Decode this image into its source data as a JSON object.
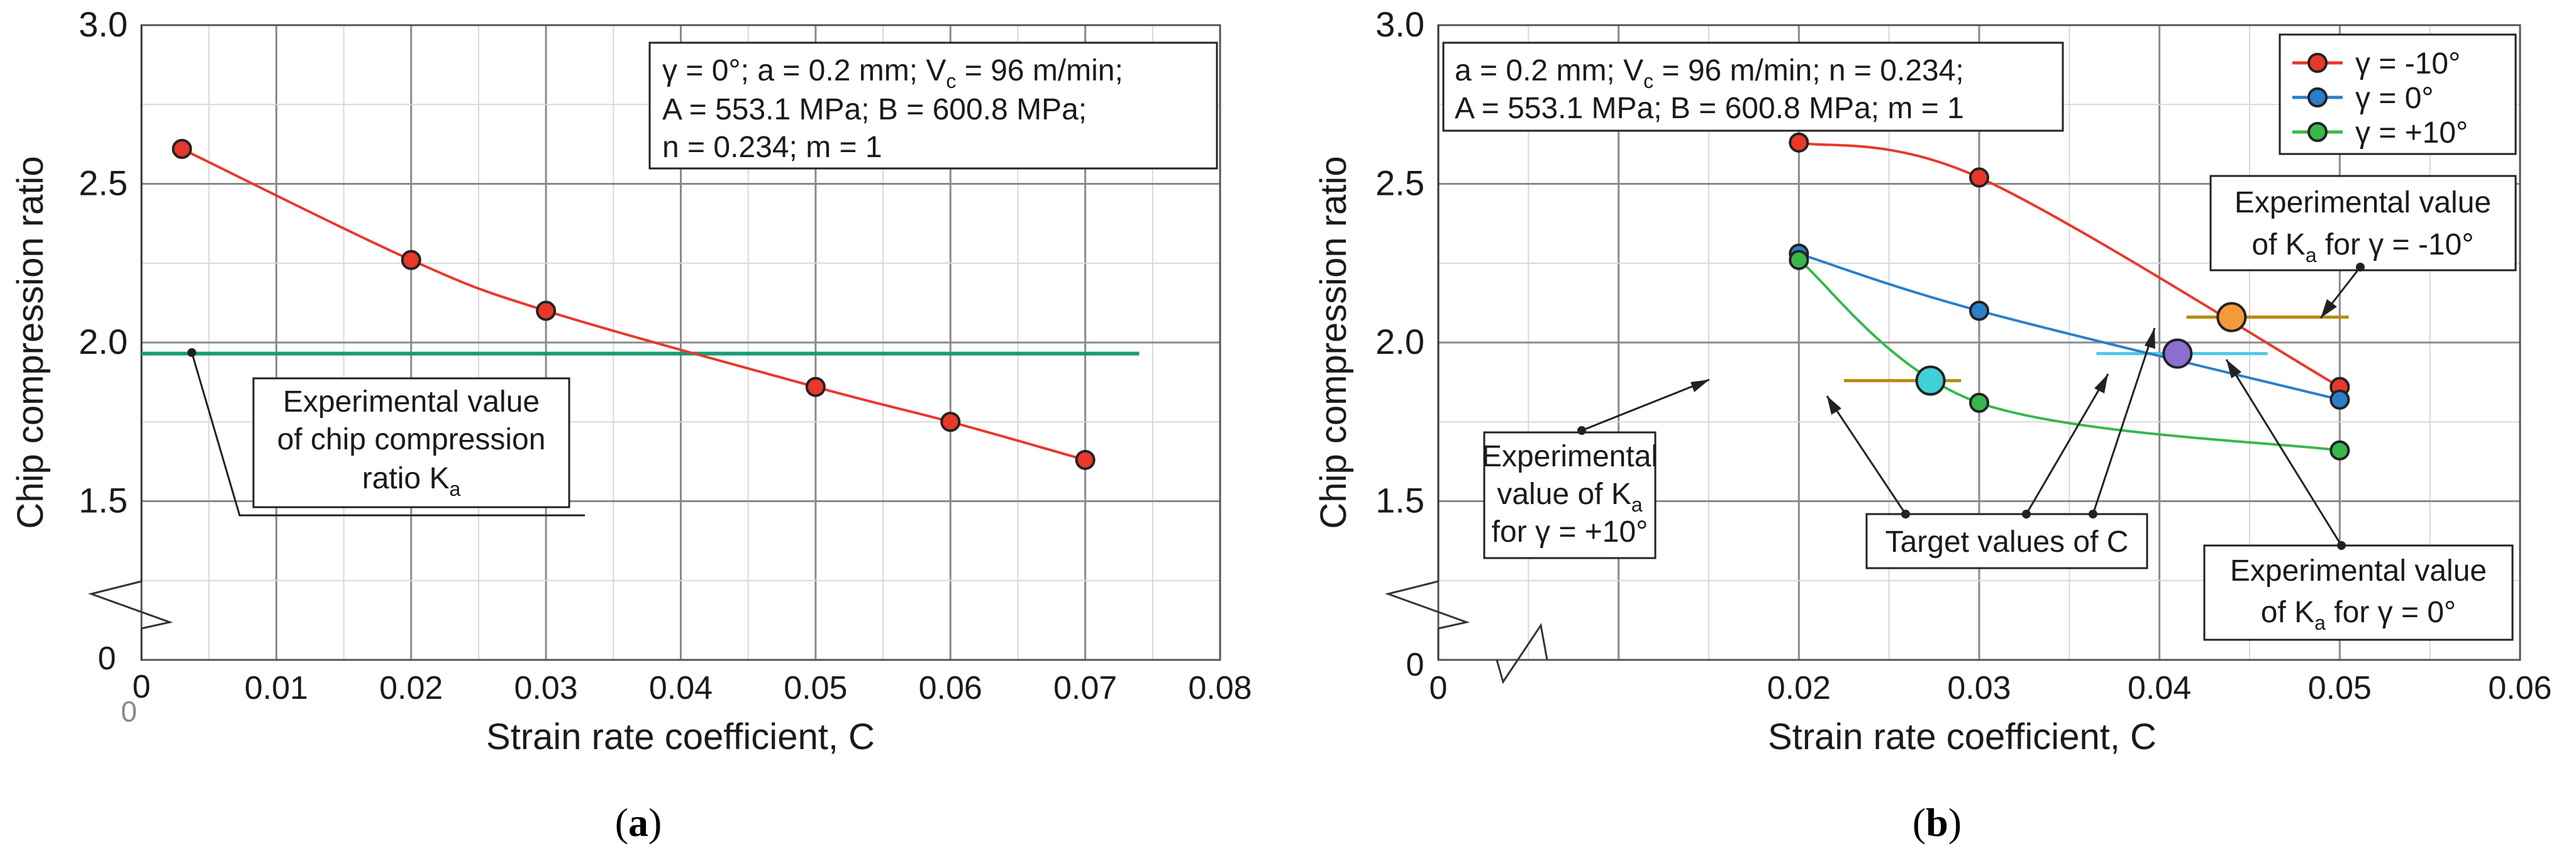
{
  "colors": {
    "red": "#e8382a",
    "blue": "#2a7fc8",
    "green": "#36b84a",
    "teal_line": "#1a9c74",
    "orange": "#f39a3a",
    "purple": "#8a6fd0",
    "cyan": "#3fd0d8",
    "gold_line": "#b98a0e",
    "cyan_line": "#4fc8e8",
    "violet_line": "#9a88e0",
    "grid_major": "#8a8a8a",
    "grid_minor": "#d8d8d8"
  },
  "chart_data": [
    {
      "id": "a",
      "type": "line",
      "panel_label": "(a)",
      "xlabel": "Strain rate coefficient, C",
      "ylabel": "Chip compression ratio",
      "xlim": [
        0,
        0.08
      ],
      "ylim_display": [
        1.0,
        3.0
      ],
      "x_ticks": [
        "0.01",
        "0.02",
        "0.03",
        "0.04",
        "0.05",
        "0.06",
        "0.07",
        "0.08"
      ],
      "x_zero_labels": [
        "0",
        "0"
      ],
      "y_ticks": [
        "1.5",
        "2.0",
        "2.5",
        "3.0"
      ],
      "y_zero_label": "0",
      "info_box": [
        "γ = 0°; a = 0.2 mm; V",
        "c",
        " = 96 m/min;",
        "A = 553.1 MPa; B = 600.8 MPa;",
        "n = 0.234; m = 1"
      ],
      "series": [
        {
          "name": "γ = 0°",
          "color_key": "red",
          "x": [
            0.003,
            0.02,
            0.03,
            0.05,
            0.06,
            0.07
          ],
          "y": [
            2.61,
            2.26,
            2.1,
            1.86,
            1.75,
            1.63
          ]
        }
      ],
      "reference_line": {
        "y": 1.965,
        "x_from": 0.0,
        "x_to": 0.074,
        "color_key": "teal_line"
      },
      "annotation": {
        "lines": [
          "Experimental value",
          "of chip compression",
          "ratio K",
          "a"
        ]
      }
    },
    {
      "id": "b",
      "type": "line",
      "panel_label": "(b)",
      "xlabel": "Strain rate coefficient, C",
      "ylabel": "Chip compression ratio",
      "xlim": [
        0,
        0.06
      ],
      "ylim_display": [
        1.0,
        3.0
      ],
      "x_ticks": [
        "0.02",
        "0.03",
        "0.04",
        "0.05",
        "0.06"
      ],
      "x_zero_labels": [
        "0"
      ],
      "y_ticks": [
        "1.5",
        "2.0",
        "2.5",
        "3.0"
      ],
      "y_zero_label": "0",
      "info_box": [
        "a = 0.2 mm; V",
        "c",
        " = 96 m/min;  n = 0.234;",
        "A = 553.1 MPa; B = 600.8 MPa; m = 1"
      ],
      "legend": [
        "γ = -10°",
        "γ = 0°",
        "γ = +10°"
      ],
      "series": [
        {
          "name": "γ = -10°",
          "color_key": "red",
          "x": [
            0.02,
            0.03,
            0.05
          ],
          "y": [
            2.63,
            2.52,
            1.86
          ]
        },
        {
          "name": "γ = 0°",
          "color_key": "blue",
          "x": [
            0.02,
            0.03,
            0.05
          ],
          "y": [
            2.28,
            2.1,
            1.82
          ]
        },
        {
          "name": "γ = +10°",
          "color_key": "green",
          "x": [
            0.02,
            0.03,
            0.05
          ],
          "y": [
            2.26,
            1.81,
            1.66
          ]
        }
      ],
      "experimental_lines": [
        {
          "name": "γ = -10°",
          "y": 2.08,
          "x_from": 0.0415,
          "x_to": 0.0505,
          "color_key": "gold_line"
        },
        {
          "name": "γ = 0°",
          "y": 1.965,
          "x_from": 0.0365,
          "x_to": 0.046,
          "color_key": "cyan_line"
        },
        {
          "name": "γ = 0° (target span)",
          "y": 1.965,
          "x_from": 0.0402,
          "x_to": 0.0415,
          "color_key": "violet_line"
        },
        {
          "name": "γ = +10°",
          "y": 1.88,
          "x_from": 0.0225,
          "x_to": 0.029,
          "color_key": "gold_line"
        }
      ],
      "target_points": [
        {
          "gamma": "γ = -10°",
          "x": 0.044,
          "y": 2.08,
          "color_key": "orange"
        },
        {
          "gamma": "γ = 0°",
          "x": 0.041,
          "y": 1.965,
          "color_key": "purple"
        },
        {
          "gamma": "γ = +10°",
          "x": 0.0273,
          "y": 1.88,
          "color_key": "cyan"
        }
      ],
      "annotations": {
        "exp_minus10": [
          "Experimental value",
          "of K",
          "a",
          " for γ = -10°"
        ],
        "exp_plus10": [
          "Experimental",
          "value of K",
          "a",
          "for γ = +10°"
        ],
        "target": "Target values of C",
        "exp_zero": [
          "Experimental value",
          "of K",
          "a",
          " for γ = 0°"
        ]
      }
    }
  ]
}
